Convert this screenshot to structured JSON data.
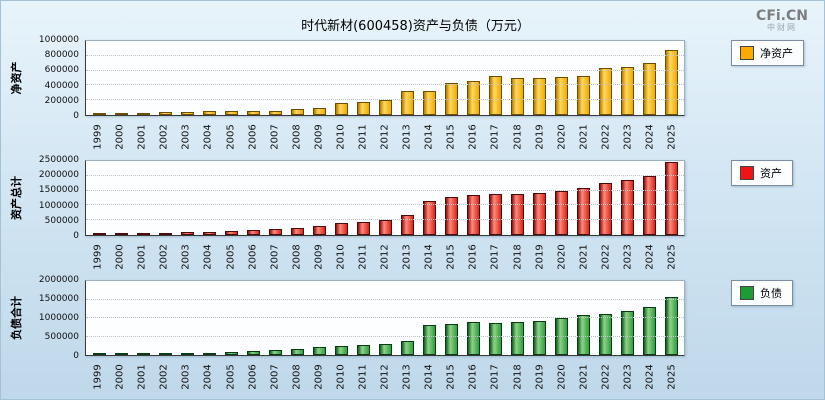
{
  "page": {
    "title": "时代新材(600458)资产与负债（万元）",
    "logo": {
      "line1": "CFi.CN",
      "line2": "中财网"
    }
  },
  "years": [
    "1999",
    "2000",
    "2001",
    "2002",
    "2003",
    "2004",
    "2005",
    "2006",
    "2007",
    "2008",
    "2009",
    "2010",
    "2011",
    "2012",
    "2013",
    "2014",
    "2015",
    "2016",
    "2017",
    "2018",
    "2019",
    "2020",
    "2021",
    "2022",
    "2023",
    "2024",
    "2025"
  ],
  "chart_data": [
    {
      "type": "bar",
      "title": "净资产",
      "axis_title": "净资产",
      "legend": "净资产",
      "color": "#ffaa00",
      "ylim": [
        0,
        1000000
      ],
      "yticks": [
        0,
        200000,
        400000,
        600000,
        800000,
        1000000
      ],
      "legend_position": "right",
      "grid": "horizontal-dotted",
      "categories": [
        "1999",
        "2000",
        "2001",
        "2002",
        "2003",
        "2004",
        "2005",
        "2006",
        "2007",
        "2008",
        "2009",
        "2010",
        "2011",
        "2012",
        "2013",
        "2014",
        "2015",
        "2016",
        "2017",
        "2018",
        "2019",
        "2020",
        "2021",
        "2022",
        "2023",
        "2024",
        "2025"
      ],
      "values": [
        15000,
        18000,
        22000,
        40000,
        45000,
        48000,
        50000,
        52000,
        57000,
        80000,
        92000,
        165000,
        180000,
        200000,
        320000,
        330000,
        430000,
        460000,
        530000,
        500000,
        500000,
        510000,
        530000,
        630000,
        650000,
        700000,
        880000
      ]
    },
    {
      "type": "bar",
      "title": "资产总计",
      "axis_title": "资产总计",
      "legend": "资产",
      "color": "#f01414",
      "ylim": [
        0,
        2500000
      ],
      "yticks": [
        0,
        500000,
        1000000,
        1500000,
        2000000,
        2500000
      ],
      "legend_position": "right",
      "grid": "horizontal-dotted",
      "categories": [
        "1999",
        "2000",
        "2001",
        "2002",
        "2003",
        "2004",
        "2005",
        "2006",
        "2007",
        "2008",
        "2009",
        "2010",
        "2011",
        "2012",
        "2013",
        "2014",
        "2015",
        "2016",
        "2017",
        "2018",
        "2019",
        "2020",
        "2021",
        "2022",
        "2023",
        "2024",
        "2025"
      ],
      "values": [
        30000,
        40000,
        52000,
        80000,
        95000,
        110000,
        130000,
        160000,
        200000,
        250000,
        300000,
        400000,
        450000,
        500000,
        690000,
        1140000,
        1280000,
        1340000,
        1400000,
        1380000,
        1430000,
        1500000,
        1600000,
        1750000,
        1850000,
        2000000,
        2450000
      ]
    },
    {
      "type": "bar",
      "title": "负债合计",
      "axis_title": "负债合计",
      "legend": "负债",
      "color": "#1c9c32",
      "ylim": [
        0,
        2000000
      ],
      "yticks": [
        0,
        500000,
        1000000,
        1500000,
        2000000
      ],
      "legend_position": "right",
      "grid": "horizontal-dotted",
      "categories": [
        "1999",
        "2000",
        "2001",
        "2002",
        "2003",
        "2004",
        "2005",
        "2006",
        "2007",
        "2008",
        "2009",
        "2010",
        "2011",
        "2012",
        "2013",
        "2014",
        "2015",
        "2016",
        "2017",
        "2018",
        "2019",
        "2020",
        "2021",
        "2022",
        "2023",
        "2024",
        "2025"
      ],
      "values": [
        15000,
        22000,
        30000,
        40000,
        50000,
        62000,
        80000,
        108000,
        143000,
        170000,
        208000,
        235000,
        270000,
        300000,
        370000,
        800000,
        850000,
        880000,
        870000,
        880000,
        930000,
        990000,
        1070000,
        1120000,
        1200000,
        1300000,
        1570000
      ]
    }
  ]
}
